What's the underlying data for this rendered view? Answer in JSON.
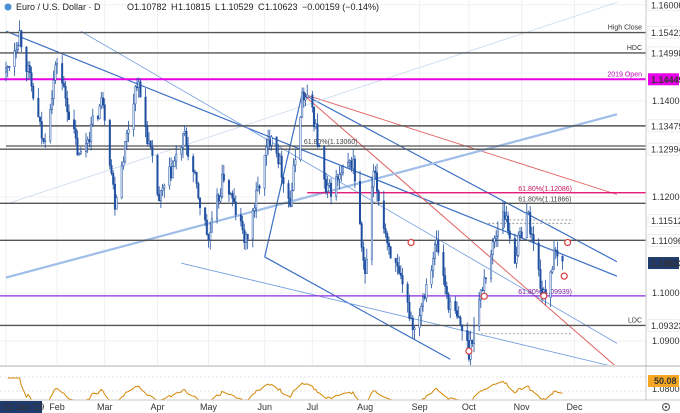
{
  "chart_data": {
    "type": "candlestick",
    "title": "Euro / U.S. Dollar · D",
    "ohlc_readout": {
      "open_label": "O",
      "open": "1.10782",
      "high_label": "H",
      "high": "1.10815",
      "low_label": "L",
      "low": "1.10529",
      "close_label": "C",
      "close": "1.10623",
      "change": "−0.00159 (−0.14%)"
    },
    "ylim": [
      1.085,
      1.161
    ],
    "y_ticks": [
      "1.16000",
      "1.14000",
      "1.13000",
      "1.12000",
      "1.10000",
      "1.09000",
      "1.08000"
    ],
    "y_tick_values": [
      1.16,
      1.14,
      1.13,
      1.12,
      1.1,
      1.09,
      1.08
    ],
    "x_start": "2019-01-02",
    "x_end": "2019-12-27",
    "x_ticks": [
      {
        "date": "2019-01-02",
        "label": "02 Jan '19",
        "highlight": true
      },
      {
        "date": "2019-02-01",
        "label": "Feb"
      },
      {
        "date": "2019-03-01",
        "label": "Mar"
      },
      {
        "date": "2019-04-01",
        "label": "Apr"
      },
      {
        "date": "2019-05-01",
        "label": "May"
      },
      {
        "date": "2019-06-03",
        "label": "Jun"
      },
      {
        "date": "2019-07-01",
        "label": "Jul"
      },
      {
        "date": "2019-08-01",
        "label": "Aug"
      },
      {
        "date": "2019-09-02",
        "label": "Sep"
      },
      {
        "date": "2019-10-01",
        "label": "Oct"
      },
      {
        "date": "2019-11-01",
        "label": "Nov"
      },
      {
        "date": "2019-12-02",
        "label": "Dec"
      }
    ],
    "price_path": [
      [
        "2019-01-02",
        1.146
      ],
      [
        "2019-01-10",
        1.1542
      ],
      [
        "2019-01-24",
        1.131
      ],
      [
        "2019-02-01",
        1.1485
      ],
      [
        "2019-02-14",
        1.128
      ],
      [
        "2019-02-28",
        1.1405
      ],
      [
        "2019-03-07",
        1.119
      ],
      [
        "2019-03-20",
        1.1445
      ],
      [
        "2019-04-02",
        1.119
      ],
      [
        "2019-04-17",
        1.1325
      ],
      [
        "2019-05-01",
        1.111
      ],
      [
        "2019-05-10",
        1.1245
      ],
      [
        "2019-05-23",
        1.1105
      ],
      [
        "2019-06-07",
        1.134
      ],
      [
        "2019-06-18",
        1.1185
      ],
      [
        "2019-06-25",
        1.1412
      ],
      [
        "2019-07-01",
        1.1385
      ],
      [
        "2019-07-09",
        1.1205
      ],
      [
        "2019-07-25",
        1.1275
      ],
      [
        "2019-08-01",
        1.1028
      ],
      [
        "2019-08-06",
        1.125
      ],
      [
        "2019-08-14",
        1.111
      ],
      [
        "2019-08-30",
        1.0925
      ],
      [
        "2019-09-12",
        1.1105
      ],
      [
        "2019-09-19",
        1.098
      ],
      [
        "2019-09-27",
        1.0925
      ],
      [
        "2019-10-01",
        1.0879
      ],
      [
        "2019-10-09",
        1.1015
      ],
      [
        "2019-10-21",
        1.1179
      ],
      [
        "2019-10-28",
        1.1075
      ],
      [
        "2019-11-04",
        1.1175
      ],
      [
        "2019-11-13",
        1.1005
      ],
      [
        "2019-11-14",
        1.099
      ],
      [
        "2019-11-20",
        1.1075
      ],
      [
        "2019-11-25",
        1.1062
      ]
    ],
    "horizontal_levels": [
      {
        "price": 1.15421,
        "label": "High Close",
        "color": "#555555",
        "width": 1.4
      },
      {
        "price": 1.14998,
        "label": "HDC",
        "color": "#555555",
        "width": 1.4
      },
      {
        "price": 1.14449,
        "label": "2019 Open",
        "color": "#e800e8",
        "width": 2
      },
      {
        "price": 1.13479,
        "label": "",
        "color": "#555555",
        "width": 1.4
      },
      {
        "price": 1.12994,
        "label": "",
        "color": "#555555",
        "width": 1.4
      },
      {
        "price": 1.11866,
        "label": "",
        "color": "#555555",
        "width": 1.4
      },
      {
        "price": 1.11096,
        "label": "",
        "color": "#555555",
        "width": 1.4
      },
      {
        "price": 1.09939,
        "label": "",
        "color": "#8a2be2",
        "width": 1.2
      },
      {
        "price": 1.09323,
        "label": "LDC",
        "color": "#555555",
        "width": 1.4
      }
    ],
    "price_labels": [
      {
        "price": 1.16,
        "value": "1.16000",
        "bg": "#ffffff",
        "fg": "#333333"
      },
      {
        "price": 1.15421,
        "value": "1.15421",
        "bg": "#ffffff",
        "fg": "#222222"
      },
      {
        "price": 1.14998,
        "value": "1.14998",
        "bg": "#ffffff",
        "fg": "#222222"
      },
      {
        "price": 1.14449,
        "value": "1.14449",
        "bg": "#e800e8",
        "fg": "#ffffff"
      },
      {
        "price": 1.13479,
        "value": "1.13479",
        "bg": "#ffffff",
        "fg": "#222222"
      },
      {
        "price": 1.12994,
        "value": "1.12994",
        "bg": "#ffffff",
        "fg": "#222222"
      },
      {
        "price": 1.11512,
        "value": "1.11512",
        "bg": "#ffffff",
        "fg": "#222222"
      },
      {
        "price": 1.11096,
        "value": "1.11096",
        "bg": "#ffffff",
        "fg": "#222222"
      },
      {
        "price": 1.10623,
        "value": "1.10623",
        "bg": "#1f3a6b",
        "fg": "#ffffff"
      },
      {
        "price": 1.09323,
        "value": "1.09323",
        "bg": "#ffffff",
        "fg": "#222222"
      }
    ],
    "fib_labels": [
      {
        "date": "2019-06-26",
        "price": 1.1306,
        "text": "61.80%(1.13060)",
        "color": "#444444"
      },
      {
        "date": "2019-10-30",
        "price": 1.12086,
        "text": "61.80%(1.12086)",
        "color": "#c2185b"
      },
      {
        "date": "2019-10-30",
        "price": 1.11866,
        "text": "61.80%(1.11866)",
        "color": "#444444"
      },
      {
        "date": "2019-10-30",
        "price": 1.09939,
        "text": "61.80%(1.09939)",
        "color": "#7b1fa2"
      }
    ],
    "rsi": {
      "last_value": "50.08",
      "badge_color": "#f5a623",
      "line_color": "#d48806"
    }
  },
  "colors": {
    "candle_up": "#e9f1fb",
    "candle_down": "#1e4fa0",
    "wick": "#1e4fa0",
    "channel_blue": "#3a6fc4",
    "light_blue": "#6e9be0",
    "red_line": "#e06060",
    "marker_red": "#d84040",
    "fib_pink": "#e0006a",
    "fib_purple": "#8a2be2"
  }
}
